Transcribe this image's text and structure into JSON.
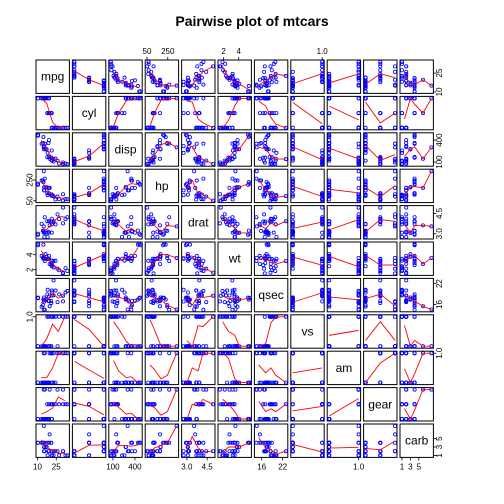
{
  "chart_data": {
    "type": "scatter",
    "title": "Pairwise plot of mtcars",
    "variables": [
      "mpg",
      "cyl",
      "disp",
      "hp",
      "drat",
      "wt",
      "qsec",
      "vs",
      "am",
      "gear",
      "carb"
    ],
    "ranges": {
      "mpg": [
        10.4,
        33.9
      ],
      "cyl": [
        4,
        8
      ],
      "disp": [
        71.1,
        472
      ],
      "hp": [
        52,
        335
      ],
      "drat": [
        2.76,
        4.93
      ],
      "wt": [
        1.513,
        5.424
      ],
      "qsec": [
        14.5,
        22.9
      ],
      "vs": [
        0,
        1
      ],
      "am": [
        0,
        1
      ],
      "gear": [
        3,
        5
      ],
      "carb": [
        1,
        8
      ]
    },
    "ticks": {
      "mpg": {
        "values": [
          10,
          25
        ],
        "labels": [
          "10",
          "25"
        ]
      },
      "cyl": {
        "values": [
          1.0,
          2.5
        ],
        "labels": [
          "1.0",
          "2.5"
        ]
      },
      "disp": {
        "values": [
          100,
          400
        ],
        "labels": [
          "100",
          "400"
        ]
      },
      "hp": {
        "values": [
          50,
          250
        ],
        "labels": [
          "50",
          "250"
        ]
      },
      "drat": {
        "values": [
          3.0,
          4.5
        ],
        "labels": [
          "3.0",
          "4.5"
        ]
      },
      "wt": {
        "values": [
          2,
          4
        ],
        "labels": [
          "2",
          "4"
        ]
      },
      "qsec": {
        "values": [
          16,
          22
        ],
        "labels": [
          "16",
          "22"
        ]
      },
      "vs": {
        "values": [
          1.0,
          1.6
        ],
        "labels": [
          "1.0",
          "1.6"
        ]
      },
      "am": {
        "values": [
          1.0,
          1.6
        ],
        "labels": [
          "1.0",
          "1.6"
        ]
      },
      "gear": {
        "values": [
          1.0,
          2.5
        ],
        "labels": [
          "1.0",
          "2.5"
        ]
      },
      "carb": {
        "values": [
          1,
          3,
          5
        ],
        "labels": [
          "1",
          "3",
          "5"
        ]
      }
    },
    "records": [
      [
        21.0,
        6,
        160.0,
        110,
        3.9,
        2.62,
        16.46,
        0,
        1,
        4,
        4
      ],
      [
        21.0,
        6,
        160.0,
        110,
        3.9,
        2.875,
        17.02,
        0,
        1,
        4,
        4
      ],
      [
        22.8,
        4,
        108.0,
        93,
        3.85,
        2.32,
        18.61,
        1,
        1,
        4,
        1
      ],
      [
        21.4,
        6,
        258.0,
        110,
        3.08,
        3.215,
        19.44,
        1,
        0,
        3,
        1
      ],
      [
        18.7,
        8,
        360.0,
        175,
        3.15,
        3.44,
        17.02,
        0,
        0,
        3,
        2
      ],
      [
        18.1,
        6,
        225.0,
        105,
        2.76,
        3.46,
        20.22,
        1,
        0,
        3,
        1
      ],
      [
        14.3,
        8,
        360.0,
        245,
        3.21,
        3.57,
        15.84,
        0,
        0,
        3,
        4
      ],
      [
        24.4,
        4,
        146.7,
        62,
        3.69,
        3.19,
        20.0,
        1,
        0,
        4,
        2
      ],
      [
        22.8,
        4,
        140.8,
        95,
        3.92,
        3.15,
        22.9,
        1,
        0,
        4,
        2
      ],
      [
        19.2,
        6,
        167.6,
        123,
        3.92,
        3.44,
        18.3,
        1,
        0,
        4,
        4
      ],
      [
        17.8,
        6,
        167.6,
        123,
        3.92,
        3.44,
        18.9,
        1,
        0,
        4,
        4
      ],
      [
        16.4,
        8,
        275.8,
        180,
        3.07,
        4.07,
        17.4,
        0,
        0,
        3,
        3
      ],
      [
        17.3,
        8,
        275.8,
        180,
        3.07,
        3.73,
        17.6,
        0,
        0,
        3,
        3
      ],
      [
        15.2,
        8,
        275.8,
        180,
        3.07,
        3.78,
        18.0,
        0,
        0,
        3,
        3
      ],
      [
        10.4,
        8,
        472.0,
        205,
        2.93,
        5.25,
        17.98,
        0,
        0,
        3,
        4
      ],
      [
        10.4,
        8,
        460.0,
        215,
        3.0,
        5.424,
        17.82,
        0,
        0,
        3,
        4
      ],
      [
        14.7,
        8,
        440.0,
        230,
        3.23,
        5.345,
        17.42,
        0,
        0,
        3,
        4
      ],
      [
        32.4,
        4,
        78.7,
        66,
        4.08,
        2.2,
        19.47,
        1,
        1,
        4,
        1
      ],
      [
        30.4,
        4,
        75.7,
        52,
        4.93,
        1.615,
        18.52,
        1,
        1,
        4,
        2
      ],
      [
        33.9,
        4,
        71.1,
        65,
        4.22,
        1.835,
        19.9,
        1,
        1,
        4,
        1
      ],
      [
        21.5,
        4,
        120.1,
        97,
        3.7,
        2.465,
        20.01,
        1,
        0,
        3,
        1
      ],
      [
        15.5,
        8,
        318.0,
        150,
        2.76,
        3.52,
        16.87,
        0,
        0,
        3,
        2
      ],
      [
        15.2,
        8,
        304.0,
        150,
        3.15,
        3.435,
        17.3,
        0,
        0,
        3,
        2
      ],
      [
        13.3,
        8,
        350.0,
        245,
        3.73,
        3.84,
        15.41,
        0,
        0,
        3,
        4
      ],
      [
        19.2,
        8,
        400.0,
        175,
        3.08,
        3.845,
        17.05,
        0,
        0,
        3,
        2
      ],
      [
        27.3,
        4,
        79.0,
        66,
        4.08,
        1.935,
        18.9,
        1,
        1,
        4,
        1
      ],
      [
        26.0,
        4,
        120.3,
        91,
        4.43,
        2.14,
        16.7,
        0,
        1,
        5,
        2
      ],
      [
        30.4,
        4,
        95.1,
        113,
        3.77,
        1.513,
        16.9,
        1,
        1,
        5,
        2
      ],
      [
        15.8,
        8,
        351.0,
        264,
        4.22,
        3.17,
        14.5,
        0,
        1,
        5,
        4
      ],
      [
        19.7,
        6,
        145.0,
        175,
        3.62,
        2.77,
        15.5,
        0,
        1,
        5,
        6
      ],
      [
        15.0,
        8,
        301.0,
        335,
        3.54,
        3.57,
        14.6,
        0,
        1,
        5,
        8
      ],
      [
        21.4,
        4,
        121.0,
        109,
        4.11,
        2.78,
        18.6,
        1,
        1,
        4,
        2
      ]
    ]
  }
}
